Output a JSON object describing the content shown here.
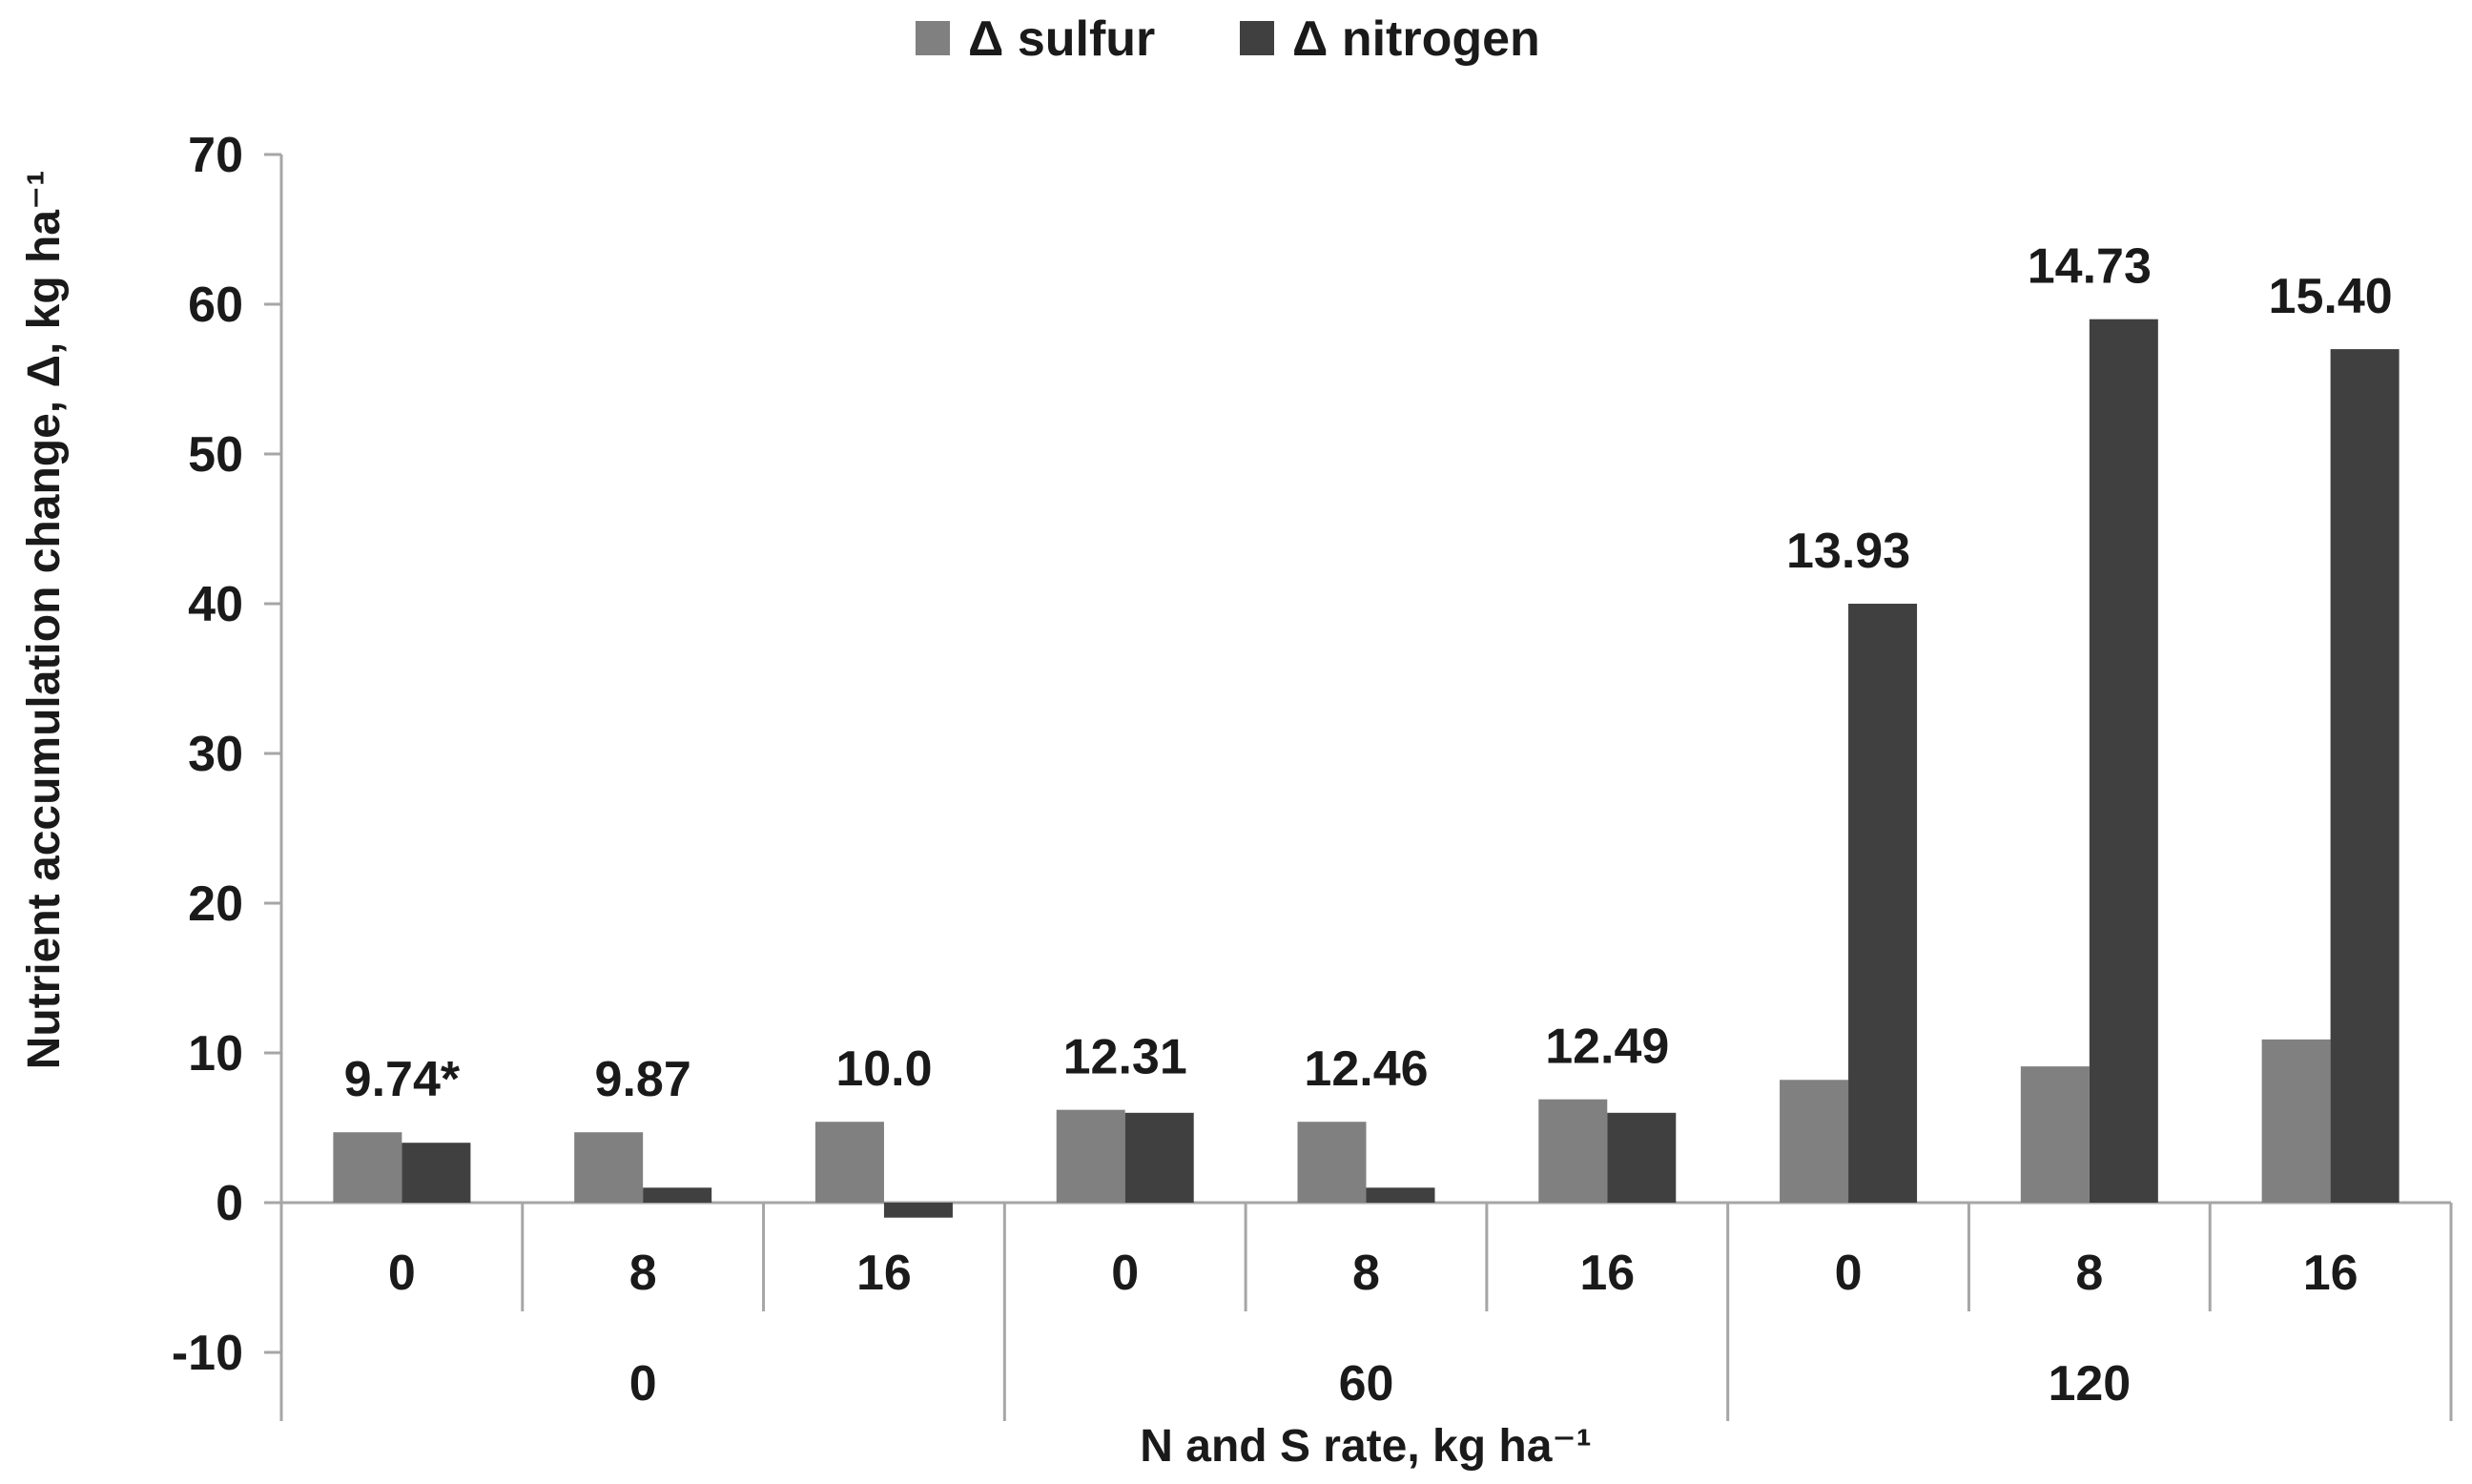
{
  "chart_data": {
    "type": "bar",
    "title": "",
    "ylabel": "Nutrient accumulation change, Δ, kg ha⁻¹",
    "xlabel": "N and S rate, kg ha⁻¹",
    "ylim": [
      -10,
      70
    ],
    "yticks": [
      -10,
      0,
      10,
      20,
      30,
      40,
      50,
      60,
      70
    ],
    "legend_position": "top-center",
    "grid": false,
    "groups": [
      {
        "label": "0",
        "categories": [
          "0",
          "8",
          "16"
        ]
      },
      {
        "label": "60",
        "categories": [
          "0",
          "8",
          "16"
        ]
      },
      {
        "label": "120",
        "categories": [
          "0",
          "8",
          "16"
        ]
      }
    ],
    "categories": [
      "0",
      "8",
      "16",
      "0",
      "8",
      "16",
      "0",
      "8",
      "16"
    ],
    "series": [
      {
        "name": "Δ sulfur",
        "color": "#808080",
        "values": [
          4.7,
          4.7,
          5.4,
          6.2,
          5.4,
          6.9,
          8.2,
          9.1,
          10.9
        ]
      },
      {
        "name": "Δ nitrogen",
        "color": "#404040",
        "values": [
          4.0,
          1.0,
          -1.0,
          6.0,
          1.0,
          6.0,
          40.0,
          59.0,
          57.0
        ]
      }
    ],
    "annotations": [
      "9.74*",
      "9.87",
      "10.0",
      "12.31",
      "12.46",
      "12.49",
      "13.93",
      "14.73",
      "15.40"
    ]
  }
}
